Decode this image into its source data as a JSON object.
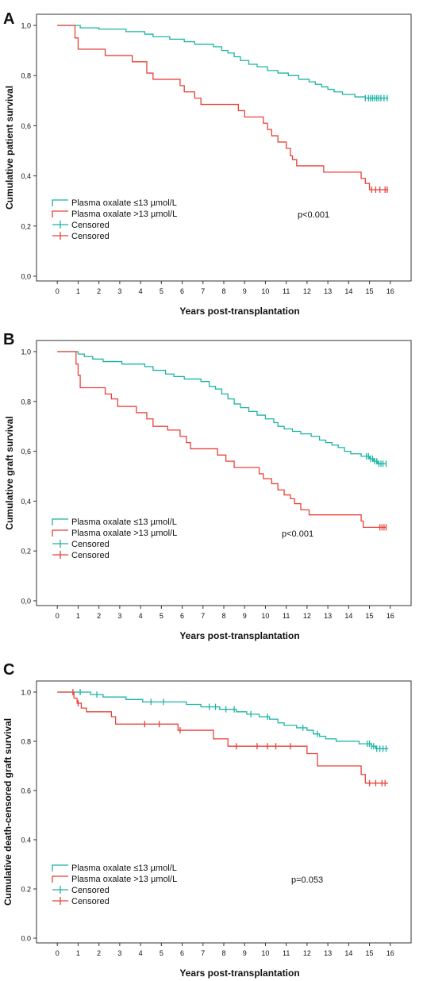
{
  "figure": {
    "panels": [
      "A",
      "B",
      "C"
    ]
  },
  "colors": {
    "low_oxalate": "#1bb5a4",
    "high_oxalate": "#e8423a",
    "axis": "#333333",
    "text": "#111111"
  },
  "chart_data": [
    {
      "type": "line",
      "panel_label": "A",
      "ylabel": "Cumulative patient survival",
      "xlabel": "Years post-transplantation",
      "xlim": [
        -1,
        17
      ],
      "ylim": [
        0,
        1.0
      ],
      "x_ticks": [
        0,
        1,
        2,
        3,
        4,
        5,
        6,
        7,
        8,
        9,
        10,
        11,
        12,
        13,
        14,
        15,
        16
      ],
      "y_ticks": [
        0.0,
        0.2,
        0.4,
        0.6,
        0.8,
        1.0
      ],
      "y_tick_labels": [
        "0,0",
        "0,2",
        "0,4",
        "0,6",
        "0,8",
        "1,0"
      ],
      "legend_position": "lower-left",
      "legend": [
        "Plasma oxalate ≤13 µmol/L",
        "Plasma oxalate >13 µmol/L",
        "Censored",
        "Censored"
      ],
      "annotation": "p<0.001",
      "series": [
        {
          "name": "Plasma oxalate ≤13 µmol/L",
          "color": "#1bb5a4",
          "steps": [
            [
              0,
              1.0
            ],
            [
              1.1,
              0.99
            ],
            [
              2,
              0.985
            ],
            [
              3.3,
              0.975
            ],
            [
              4.2,
              0.965
            ],
            [
              4.6,
              0.955
            ],
            [
              5.4,
              0.945
            ],
            [
              6.1,
              0.935
            ],
            [
              6.6,
              0.925
            ],
            [
              7.5,
              0.915
            ],
            [
              7.9,
              0.9
            ],
            [
              8.2,
              0.89
            ],
            [
              8.5,
              0.875
            ],
            [
              8.8,
              0.86
            ],
            [
              9.2,
              0.845
            ],
            [
              9.6,
              0.835
            ],
            [
              10.1,
              0.82
            ],
            [
              10.6,
              0.81
            ],
            [
              11.1,
              0.8
            ],
            [
              11.6,
              0.785
            ],
            [
              12.1,
              0.775
            ],
            [
              12.4,
              0.765
            ],
            [
              12.7,
              0.755
            ],
            [
              13.0,
              0.745
            ],
            [
              13.3,
              0.735
            ],
            [
              13.7,
              0.725
            ],
            [
              14.3,
              0.715
            ],
            [
              14.8,
              0.71
            ],
            [
              15.9,
              0.71
            ]
          ],
          "censor_x": [
            14.8,
            14.95,
            15.05,
            15.15,
            15.25,
            15.35,
            15.45,
            15.55,
            15.7,
            15.85
          ]
        },
        {
          "name": "Plasma oxalate >13 µmol/L",
          "color": "#e8423a",
          "steps": [
            [
              0,
              1.0
            ],
            [
              0.85,
              0.95
            ],
            [
              1.0,
              0.905
            ],
            [
              2.3,
              0.88
            ],
            [
              3.6,
              0.855
            ],
            [
              4.3,
              0.81
            ],
            [
              4.6,
              0.785
            ],
            [
              5.9,
              0.76
            ],
            [
              6.1,
              0.735
            ],
            [
              6.6,
              0.71
            ],
            [
              6.9,
              0.685
            ],
            [
              8.7,
              0.66
            ],
            [
              9.0,
              0.635
            ],
            [
              9.9,
              0.61
            ],
            [
              10.1,
              0.585
            ],
            [
              10.3,
              0.56
            ],
            [
              10.6,
              0.535
            ],
            [
              11.0,
              0.51
            ],
            [
              11.2,
              0.48
            ],
            [
              11.3,
              0.465
            ],
            [
              11.5,
              0.44
            ],
            [
              12.8,
              0.415
            ],
            [
              14.6,
              0.39
            ],
            [
              14.8,
              0.37
            ],
            [
              15.0,
              0.345
            ],
            [
              15.9,
              0.345
            ]
          ],
          "censor_x": [
            15.1,
            15.3,
            15.5,
            15.75,
            15.85
          ]
        }
      ]
    },
    {
      "type": "line",
      "panel_label": "B",
      "ylabel": "Cumulative graft survival",
      "xlabel": "Years post-transplantation",
      "xlim": [
        -1,
        17
      ],
      "ylim": [
        0,
        1.0
      ],
      "x_ticks": [
        0,
        1,
        2,
        3,
        4,
        5,
        6,
        7,
        8,
        9,
        10,
        11,
        12,
        13,
        14,
        15,
        16
      ],
      "y_ticks": [
        0.0,
        0.2,
        0.4,
        0.6,
        0.8,
        1.0
      ],
      "y_tick_labels": [
        "0,0",
        "0,2",
        "0,4",
        "0,6",
        "0,8",
        "1,0"
      ],
      "legend_position": "lower-left",
      "legend": [
        "Plasma oxalate ≤13 µmol/L",
        "Plasma oxalate >13 µmol/L",
        "Censored",
        "Censored"
      ],
      "annotation": "p<0.001",
      "series": [
        {
          "name": "Plasma oxalate ≤13 µmol/L",
          "color": "#1bb5a4",
          "steps": [
            [
              0,
              1.0
            ],
            [
              1.0,
              0.99
            ],
            [
              1.3,
              0.98
            ],
            [
              1.7,
              0.97
            ],
            [
              2.2,
              0.96
            ],
            [
              3.1,
              0.95
            ],
            [
              4.2,
              0.94
            ],
            [
              4.6,
              0.925
            ],
            [
              5.2,
              0.91
            ],
            [
              5.6,
              0.9
            ],
            [
              6.1,
              0.89
            ],
            [
              6.9,
              0.88
            ],
            [
              7.3,
              0.86
            ],
            [
              7.6,
              0.85
            ],
            [
              7.9,
              0.83
            ],
            [
              8.2,
              0.81
            ],
            [
              8.5,
              0.79
            ],
            [
              8.8,
              0.775
            ],
            [
              9.2,
              0.76
            ],
            [
              9.6,
              0.745
            ],
            [
              10.0,
              0.73
            ],
            [
              10.4,
              0.715
            ],
            [
              10.6,
              0.7
            ],
            [
              10.9,
              0.69
            ],
            [
              11.3,
              0.68
            ],
            [
              11.7,
              0.67
            ],
            [
              12.2,
              0.66
            ],
            [
              12.6,
              0.645
            ],
            [
              12.9,
              0.635
            ],
            [
              13.2,
              0.625
            ],
            [
              13.5,
              0.615
            ],
            [
              13.8,
              0.6
            ],
            [
              14.1,
              0.59
            ],
            [
              14.6,
              0.58
            ],
            [
              15.0,
              0.57
            ],
            [
              15.2,
              0.56
            ],
            [
              15.4,
              0.55
            ],
            [
              15.8,
              0.55
            ]
          ],
          "censor_x": [
            14.85,
            14.95,
            15.05,
            15.15,
            15.25,
            15.35,
            15.45,
            15.55,
            15.65,
            15.8
          ]
        },
        {
          "name": "Plasma oxalate >13 µmol/L",
          "color": "#e8423a",
          "steps": [
            [
              0,
              1.0
            ],
            [
              0.9,
              0.95
            ],
            [
              1.0,
              0.905
            ],
            [
              1.1,
              0.855
            ],
            [
              2.3,
              0.83
            ],
            [
              2.6,
              0.81
            ],
            [
              2.9,
              0.78
            ],
            [
              3.8,
              0.755
            ],
            [
              4.3,
              0.73
            ],
            [
              4.6,
              0.7
            ],
            [
              5.3,
              0.685
            ],
            [
              5.9,
              0.66
            ],
            [
              6.2,
              0.635
            ],
            [
              6.4,
              0.61
            ],
            [
              7.7,
              0.585
            ],
            [
              8.1,
              0.56
            ],
            [
              8.5,
              0.535
            ],
            [
              9.7,
              0.51
            ],
            [
              9.9,
              0.49
            ],
            [
              10.3,
              0.47
            ],
            [
              10.6,
              0.445
            ],
            [
              10.9,
              0.425
            ],
            [
              11.2,
              0.41
            ],
            [
              11.4,
              0.39
            ],
            [
              11.7,
              0.365
            ],
            [
              12.1,
              0.345
            ],
            [
              14.6,
              0.32
            ],
            [
              14.7,
              0.295
            ],
            [
              15.8,
              0.295
            ]
          ],
          "censor_x": [
            15.5,
            15.6,
            15.7,
            15.8
          ]
        }
      ]
    },
    {
      "type": "line",
      "panel_label": "C",
      "ylabel": "Cumulative death-censored graft survival",
      "xlabel": "Years post-transplantation",
      "xlim": [
        -1,
        17
      ],
      "ylim": [
        0,
        1.0
      ],
      "x_ticks": [
        0,
        1,
        2,
        3,
        4,
        5,
        6,
        7,
        8,
        9,
        10,
        11,
        12,
        13,
        14,
        15,
        16
      ],
      "y_ticks": [
        0.0,
        0.2,
        0.4,
        0.6,
        0.8,
        1.0
      ],
      "y_tick_labels": [
        "0.0",
        "0.2",
        "0.4",
        "0.6",
        "0.8",
        "1.0"
      ],
      "legend_position": "lower-left",
      "legend": [
        "Plasma oxalate ≤13 µmol/L",
        "Plasma oxalate >13 µmol/L",
        "Censored",
        "Censored"
      ],
      "annotation": "p=0.053",
      "series": [
        {
          "name": "Plasma oxalate ≤13 µmol/L",
          "color": "#1bb5a4",
          "steps": [
            [
              0,
              1.0
            ],
            [
              1.6,
              0.99
            ],
            [
              2.2,
              0.98
            ],
            [
              3.3,
              0.97
            ],
            [
              4.1,
              0.96
            ],
            [
              6.2,
              0.95
            ],
            [
              6.9,
              0.94
            ],
            [
              7.8,
              0.93
            ],
            [
              8.6,
              0.92
            ],
            [
              9.1,
              0.91
            ],
            [
              9.7,
              0.9
            ],
            [
              10.2,
              0.89
            ],
            [
              10.6,
              0.875
            ],
            [
              10.9,
              0.865
            ],
            [
              11.5,
              0.855
            ],
            [
              12.0,
              0.845
            ],
            [
              12.3,
              0.83
            ],
            [
              12.6,
              0.82
            ],
            [
              12.9,
              0.81
            ],
            [
              13.4,
              0.8
            ],
            [
              14.5,
              0.79
            ],
            [
              15.1,
              0.78
            ],
            [
              15.3,
              0.77
            ],
            [
              15.9,
              0.77
            ]
          ],
          "censor_x": [
            1.1,
            1.9,
            4.5,
            5.1,
            7.3,
            7.6,
            8.1,
            8.5,
            9.3,
            10.1,
            11.8,
            12.5,
            14.9,
            15.0,
            15.1,
            15.2,
            15.35,
            15.5,
            15.65,
            15.8
          ]
        },
        {
          "name": "Plasma oxalate >13 µmol/L",
          "color": "#e8423a",
          "steps": [
            [
              0,
              1.0
            ],
            [
              0.8,
              0.975
            ],
            [
              0.95,
              0.955
            ],
            [
              1.15,
              0.935
            ],
            [
              1.4,
              0.92
            ],
            [
              2.6,
              0.9
            ],
            [
              2.8,
              0.87
            ],
            [
              5.8,
              0.845
            ],
            [
              7.5,
              0.81
            ],
            [
              8.2,
              0.78
            ],
            [
              12.0,
              0.75
            ],
            [
              12.5,
              0.7
            ],
            [
              14.6,
              0.665
            ],
            [
              14.8,
              0.63
            ],
            [
              15.9,
              0.63
            ]
          ],
          "censor_x": [
            0.75,
            1.0,
            4.2,
            4.9,
            5.9,
            8.6,
            9.6,
            10.1,
            10.5,
            11.2,
            15.0,
            15.3,
            15.6,
            15.75
          ]
        }
      ]
    }
  ]
}
